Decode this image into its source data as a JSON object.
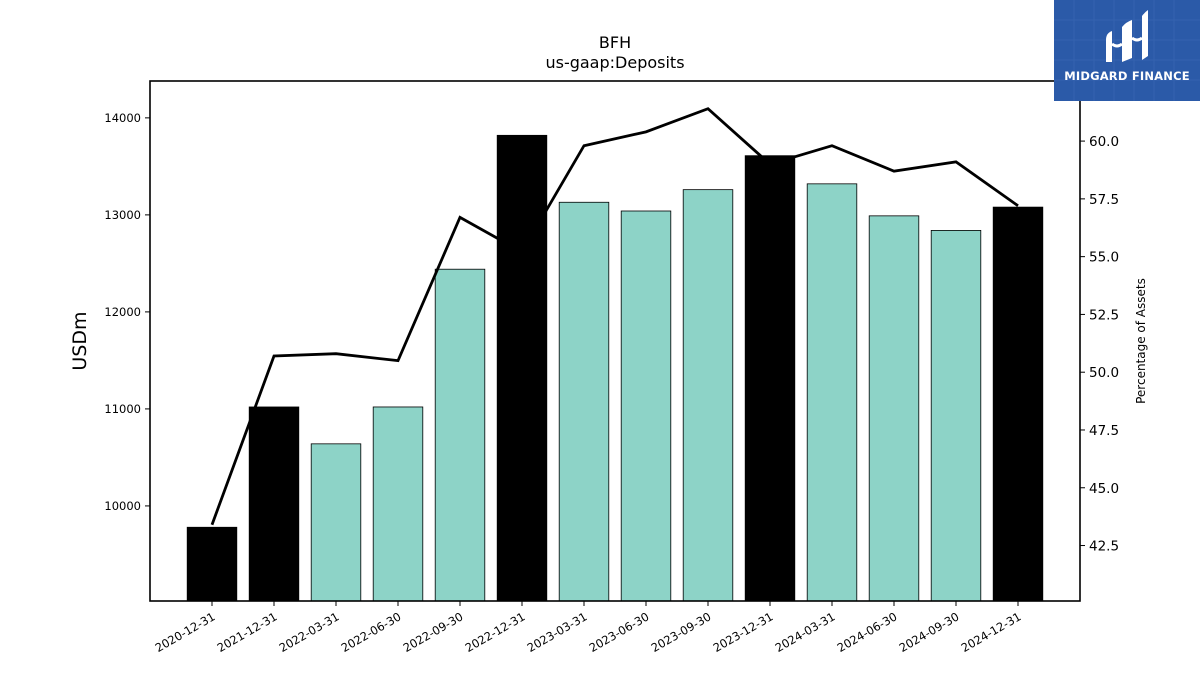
{
  "chart_data": {
    "type": "bar",
    "title": "BFH",
    "subtitle": "us-gaap:Deposits",
    "ylabel": "USDm",
    "ylabel_right": "Percentage of Assets",
    "categories": [
      "2020-12-31",
      "2021-12-31",
      "2022-03-31",
      "2022-06-30",
      "2022-09-30",
      "2022-12-31",
      "2023-03-31",
      "2023-06-30",
      "2023-09-30",
      "2023-12-31",
      "2024-03-31",
      "2024-06-30",
      "2024-09-30",
      "2024-12-31"
    ],
    "series": [
      {
        "type": "bar",
        "axis": "left",
        "values": [
          9780,
          11020,
          10640,
          11020,
          12440,
          13820,
          13130,
          13040,
          13260,
          13610,
          13320,
          12990,
          12840,
          13080
        ],
        "highlight": [
          true,
          true,
          false,
          false,
          false,
          true,
          false,
          false,
          false,
          true,
          false,
          false,
          false,
          true
        ]
      },
      {
        "type": "line",
        "axis": "right",
        "values": [
          43.4,
          50.7,
          50.8,
          50.5,
          56.7,
          55.2,
          59.8,
          60.4,
          61.4,
          59.0,
          59.8,
          58.7,
          59.1,
          57.2
        ]
      }
    ],
    "ylim": [
      9020,
      14380
    ],
    "ylim_right": [
      40.1,
      62.6
    ],
    "yticks": [
      10000,
      11000,
      12000,
      13000,
      14000
    ],
    "yticks_right": [
      42.5,
      45.0,
      47.5,
      50.0,
      52.5,
      55.0,
      57.5,
      60.0
    ],
    "colors": {
      "bar": "#8dd3c7",
      "highlight": "#000000",
      "line": "#000000"
    },
    "grid": false
  },
  "logo": {
    "text": "MIDGARD FINANCE",
    "background": "#2b5aa8"
  }
}
